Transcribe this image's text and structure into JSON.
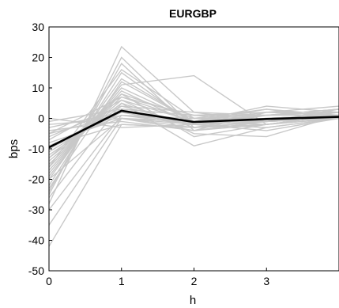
{
  "chart_data": {
    "type": "line",
    "title": "EURGBP",
    "xlabel": "h",
    "ylabel": "bps",
    "x": [
      0,
      1,
      2,
      3,
      4
    ],
    "xticks": [
      "0",
      "1",
      "2",
      "3"
    ],
    "yticks": [
      "30",
      "20",
      "10",
      "0",
      "-10",
      "-20",
      "-30",
      "-40",
      "-50"
    ],
    "xlim": [
      0,
      4
    ],
    "ylim": [
      -50,
      30
    ],
    "grid": false,
    "colors": {
      "mean": "#000000",
      "paths": "#c8c8c8"
    },
    "mean_series": {
      "values": [
        -9.5,
        2.5,
        -1.2,
        -0.2,
        0.5
      ]
    },
    "paths": [
      [
        -42,
        -2,
        -3,
        -2,
        1
      ],
      [
        -35,
        0,
        -2,
        -1,
        0
      ],
      [
        -28,
        23.5,
        2,
        -1,
        3
      ],
      [
        -25,
        20,
        -3,
        -1,
        0
      ],
      [
        -24,
        18,
        -4,
        -2,
        1
      ],
      [
        -22,
        15,
        -2,
        0,
        1
      ],
      [
        -20,
        13,
        -1,
        1,
        2
      ],
      [
        -19,
        11,
        14,
        -2,
        0
      ],
      [
        -18,
        10,
        -1,
        -2,
        1
      ],
      [
        -17,
        9,
        -2,
        -4,
        0
      ],
      [
        -16,
        8,
        0,
        -1,
        2
      ],
      [
        -15,
        7,
        -1,
        0,
        1
      ],
      [
        -14,
        6,
        -5,
        -6,
        1
      ],
      [
        -13,
        5,
        -9,
        -3,
        0
      ],
      [
        -12,
        4,
        2,
        1,
        3
      ],
      [
        -11,
        3,
        1,
        2,
        4
      ],
      [
        -10,
        2,
        -2,
        0,
        1
      ],
      [
        -9,
        1,
        0,
        3,
        1
      ],
      [
        -8,
        0,
        -3,
        -1,
        0
      ],
      [
        -7,
        6,
        -1,
        2,
        2
      ],
      [
        -6,
        4,
        -2,
        1,
        3
      ],
      [
        -5,
        1,
        -1,
        3,
        0
      ],
      [
        -4,
        -1,
        -4,
        2,
        1
      ],
      [
        -3,
        2,
        -2,
        -3,
        0
      ],
      [
        -2,
        0,
        -1,
        4,
        2
      ],
      [
        -1,
        3,
        1,
        1,
        3
      ],
      [
        0,
        -3,
        -2,
        0,
        1
      ],
      [
        -20,
        0,
        -4,
        -1,
        0
      ],
      [
        -26,
        5,
        -3,
        -2,
        1
      ],
      [
        -30,
        1,
        -2,
        0,
        0
      ],
      [
        -23,
        12,
        -1,
        -1,
        2
      ],
      [
        -16,
        16,
        0,
        1,
        1
      ],
      [
        -13,
        8,
        -6,
        -2,
        0
      ],
      [
        -9,
        -2,
        -3,
        1,
        2
      ],
      [
        -5,
        7,
        1,
        -1,
        1
      ]
    ]
  }
}
